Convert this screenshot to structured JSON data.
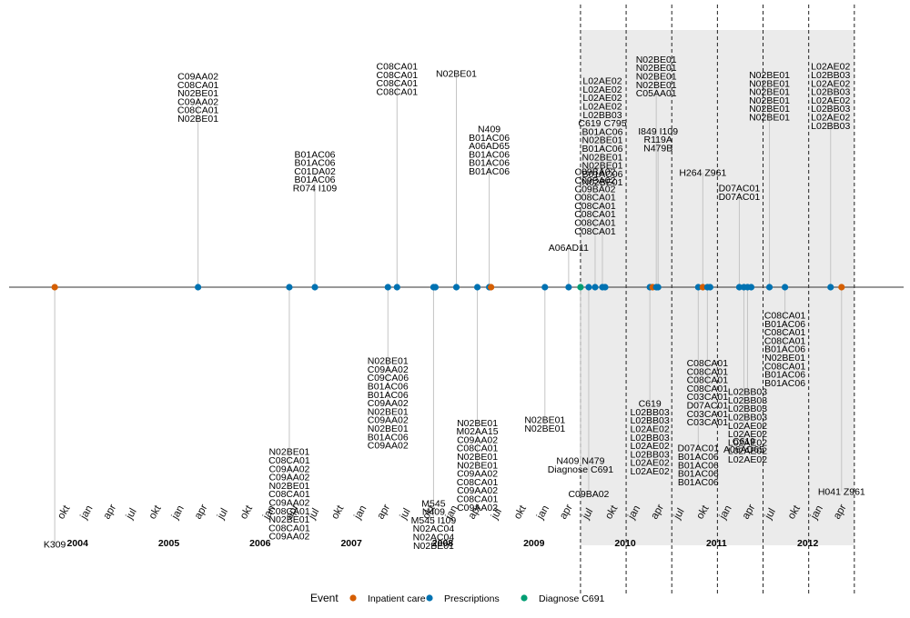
{
  "chart_data": {
    "type": "timeline",
    "xlabel": "",
    "ylabel": "",
    "xlim": [
      2003.2,
      2013.0
    ],
    "shaded_range": [
      2009.46,
      2012.46
    ],
    "dashed_lines": [
      2009.46,
      2009.96,
      2010.46,
      2010.96,
      2011.46,
      2011.96,
      2012.46
    ],
    "month_ticks": [
      {
        "x": 2003.75,
        "label": "okt"
      },
      {
        "x": 2004.0,
        "label": "jan"
      },
      {
        "x": 2004.25,
        "label": "apr"
      },
      {
        "x": 2004.5,
        "label": "jul"
      },
      {
        "x": 2004.75,
        "label": "okt"
      },
      {
        "x": 2005.0,
        "label": "jan"
      },
      {
        "x": 2005.25,
        "label": "apr"
      },
      {
        "x": 2005.5,
        "label": "jul"
      },
      {
        "x": 2005.75,
        "label": "okt"
      },
      {
        "x": 2006.0,
        "label": "jan"
      },
      {
        "x": 2006.25,
        "label": "apr"
      },
      {
        "x": 2006.5,
        "label": "jul"
      },
      {
        "x": 2006.75,
        "label": "okt"
      },
      {
        "x": 2007.0,
        "label": "jan"
      },
      {
        "x": 2007.25,
        "label": "apr"
      },
      {
        "x": 2007.5,
        "label": "jul"
      },
      {
        "x": 2007.75,
        "label": "okt"
      },
      {
        "x": 2008.0,
        "label": "jan"
      },
      {
        "x": 2008.25,
        "label": "apr"
      },
      {
        "x": 2008.5,
        "label": "jul"
      },
      {
        "x": 2008.75,
        "label": "okt"
      },
      {
        "x": 2009.0,
        "label": "jan"
      },
      {
        "x": 2009.25,
        "label": "apr"
      },
      {
        "x": 2009.5,
        "label": "jul"
      },
      {
        "x": 2009.75,
        "label": "okt"
      },
      {
        "x": 2010.0,
        "label": "jan"
      },
      {
        "x": 2010.25,
        "label": "apr"
      },
      {
        "x": 2010.5,
        "label": "jul"
      },
      {
        "x": 2010.75,
        "label": "okt"
      },
      {
        "x": 2011.0,
        "label": "jan"
      },
      {
        "x": 2011.25,
        "label": "apr"
      },
      {
        "x": 2011.5,
        "label": "jul"
      },
      {
        "x": 2011.75,
        "label": "okt"
      },
      {
        "x": 2012.0,
        "label": "jan"
      },
      {
        "x": 2012.25,
        "label": "apr"
      }
    ],
    "year_labels": [
      {
        "x": 2003.95,
        "label": "2004"
      },
      {
        "x": 2004.95,
        "label": "2005"
      },
      {
        "x": 2005.95,
        "label": "2006"
      },
      {
        "x": 2006.95,
        "label": "2007"
      },
      {
        "x": 2007.95,
        "label": "2008"
      },
      {
        "x": 2008.95,
        "label": "2009"
      },
      {
        "x": 2009.95,
        "label": "2010"
      },
      {
        "x": 2010.95,
        "label": "2011"
      },
      {
        "x": 2011.95,
        "label": "2012"
      }
    ],
    "events_legend_title": "Event",
    "series": [
      {
        "name": "Inpatient care",
        "color": "#D55E00"
      },
      {
        "name": "Prescriptions",
        "color": "#0072B2"
      },
      {
        "name": "Diagnose C691",
        "color": "#009E73"
      }
    ],
    "events": [
      {
        "x": 2003.7,
        "type": "Inpatient care",
        "offset": -1.95,
        "labels": [
          "K309"
        ]
      },
      {
        "x": 2005.27,
        "type": "Prescriptions",
        "offset": 1.44,
        "labels": [
          "C09AA02",
          "C08CA01",
          "N02BE01",
          "C09AA02",
          "C08CA01",
          "N02BE01"
        ]
      },
      {
        "x": 2006.27,
        "type": "Prescriptions",
        "offset": -1.57,
        "labels": [
          "N02BE01",
          "C08CA01",
          "C09AA02",
          "C09AA02",
          "N02BE01",
          "C08CA01",
          "C09AA02",
          "C08CA01",
          "N02BE01",
          "C08CA01",
          "C09AA02"
        ]
      },
      {
        "x": 2006.55,
        "type": "Prescriptions",
        "offset": 0.88,
        "labels": [
          "B01AC06",
          "B01AC06",
          "C01DA02",
          "B01AC06",
          "R074 I109"
        ]
      },
      {
        "x": 2007.35,
        "type": "Prescriptions",
        "offset": -0.88,
        "labels": [
          "N02BE01",
          "C09AA02",
          "C09CA06",
          "B01AC06",
          "B01AC06",
          "C09AA02",
          "N02BE01",
          "C09AA02",
          "N02BE01",
          "B01AC06",
          "C09AA02"
        ]
      },
      {
        "x": 2007.45,
        "type": "Prescriptions",
        "offset": 1.58,
        "labels": [
          "C08CA01",
          "C08CA01",
          "C08CA01",
          "C08CA01"
        ]
      },
      {
        "x": 2007.85,
        "type": "Prescriptions",
        "offset": -1.8,
        "labels": [
          "M545",
          "N409",
          "M545 I109",
          "N02AC04",
          "N02AC04",
          "N02BE01"
        ]
      },
      {
        "x": 2007.87,
        "type": "Prescriptions",
        "offset": null,
        "labels": []
      },
      {
        "x": 2008.1,
        "type": "Prescriptions",
        "offset": 1.62,
        "labels": [
          "N02BE01"
        ]
      },
      {
        "x": 2008.33,
        "type": "Prescriptions",
        "offset": -1.35,
        "labels": [
          "N02BE01",
          "M02AA15",
          "C09AA02",
          "C08CA01",
          "N02BE01",
          "N02BE01",
          "C09AA02",
          "C08CA01",
          "C09AA02",
          "C08CA01",
          "C09AA02"
        ]
      },
      {
        "x": 2008.46,
        "type": "Prescriptions",
        "offset": 1.04,
        "labels": [
          "N409",
          "B01AC06",
          "A06AD65",
          "B01AC06",
          "B01AC06",
          "B01AC06"
        ]
      },
      {
        "x": 2008.48,
        "type": "Inpatient care",
        "offset": null,
        "labels": []
      },
      {
        "x": 2009.07,
        "type": "Prescriptions",
        "offset": -1.04,
        "labels": [
          "N02BE01",
          "N02BE01"
        ]
      },
      {
        "x": 2009.33,
        "type": "Prescriptions",
        "offset": 0.3,
        "labels": [
          "A06AD11"
        ]
      },
      {
        "x": 2009.46,
        "type": "Diagnose C691",
        "offset": -1.35,
        "labels": [
          "N409 N479",
          "Diagnose C691"
        ]
      },
      {
        "x": 2009.55,
        "type": "Prescriptions",
        "offset": -1.57,
        "labels": [
          "C09BA02"
        ]
      },
      {
        "x": 2009.62,
        "type": "Prescriptions",
        "offset": 0.65,
        "labels": [
          "C09BA02",
          "C09BA02",
          "C09BA02",
          "C08CA01",
          "C08CA01",
          "C08CA01",
          "C08CA01",
          "C08CA01"
        ]
      },
      {
        "x": 2009.7,
        "type": "Prescriptions",
        "offset": 1.18,
        "labels": [
          "L02AE02",
          "L02AE02",
          "L02AE02",
          "L02AE02",
          "L02BB03",
          "C619 C795",
          "B01AC06",
          "N02BE01",
          "B01AC06",
          "N02BE01",
          "N02BE01",
          "B01AC06",
          "N02BE01"
        ]
      },
      {
        "x": 2009.73,
        "type": "Prescriptions",
        "offset": null,
        "labels": []
      },
      {
        "x": 2010.22,
        "type": "Prescriptions",
        "offset": -1.14,
        "labels": [
          "C619",
          "L02BB03",
          "L02BB03",
          "L02AE02",
          "L02BB03",
          "L02AE02",
          "L02BB03",
          "L02AE02",
          "L02AE02"
        ]
      },
      {
        "x": 2010.25,
        "type": "Inpatient care",
        "offset": null,
        "labels": []
      },
      {
        "x": 2010.29,
        "type": "Prescriptions",
        "offset": 1.6,
        "labels": [
          "N02BE01",
          "N02BE01",
          "N02BE01",
          "N02BE01",
          "C05AA01"
        ]
      },
      {
        "x": 2010.31,
        "type": "Prescriptions",
        "offset": 1.12,
        "labels": [
          "I849 I109",
          "R119A",
          "N479B"
        ]
      },
      {
        "x": 2010.75,
        "type": "Prescriptions",
        "offset": -1.35,
        "labels": [
          "D07AC01",
          "B01AC06",
          "B01AC06",
          "B01AC06",
          "B01AC06"
        ]
      },
      {
        "x": 2010.8,
        "type": "Inpatient care",
        "offset": 0.87,
        "labels": [
          "H264 Z961"
        ]
      },
      {
        "x": 2010.85,
        "type": "Prescriptions",
        "offset": -0.8,
        "labels": [
          "C08CA01",
          "C08CA01",
          "C08CA01",
          "C08CA01",
          "C03CA01",
          "D07AC01",
          "C03CA01",
          "C03CA01"
        ]
      },
      {
        "x": 2010.88,
        "type": "Prescriptions",
        "offset": null,
        "labels": []
      },
      {
        "x": 2011.2,
        "type": "Prescriptions",
        "offset": 0.72,
        "labels": [
          "D07AC01",
          "D07AC01"
        ]
      },
      {
        "x": 2011.25,
        "type": "Prescriptions",
        "offset": -1.2,
        "labels": [
          "C619",
          "A06AD65"
        ]
      },
      {
        "x": 2011.29,
        "type": "Prescriptions",
        "offset": -1.05,
        "labels": [
          "L02BB03",
          "L02BB03",
          "L02BB03",
          "L02BB03",
          "L02AE02",
          "L02AE02",
          "L02AE02",
          "L02AE02",
          "L02AE02"
        ]
      },
      {
        "x": 2011.33,
        "type": "Prescriptions",
        "offset": null,
        "labels": []
      },
      {
        "x": 2011.53,
        "type": "Prescriptions",
        "offset": 1.45,
        "labels": [
          "N02BE01",
          "N02BE01",
          "N02BE01",
          "N02BE01",
          "N02BE01",
          "N02BE01"
        ]
      },
      {
        "x": 2011.7,
        "type": "Prescriptions",
        "offset": -0.47,
        "labels": [
          "C08CA01",
          "B01AC06",
          "C08CA01",
          "C08CA01",
          "B01AC06",
          "N02BE01",
          "C08CA01",
          "B01AC06",
          "B01AC06"
        ]
      },
      {
        "x": 2012.2,
        "type": "Prescriptions",
        "offset": 1.45,
        "labels": [
          "L02AE02",
          "L02BB03",
          "L02AE02",
          "L02BB03",
          "L02AE02",
          "L02BB03",
          "L02AE02",
          "L02BB03"
        ]
      },
      {
        "x": 2012.32,
        "type": "Inpatient care",
        "offset": -1.55,
        "labels": [
          "H041 Z961"
        ]
      }
    ]
  }
}
